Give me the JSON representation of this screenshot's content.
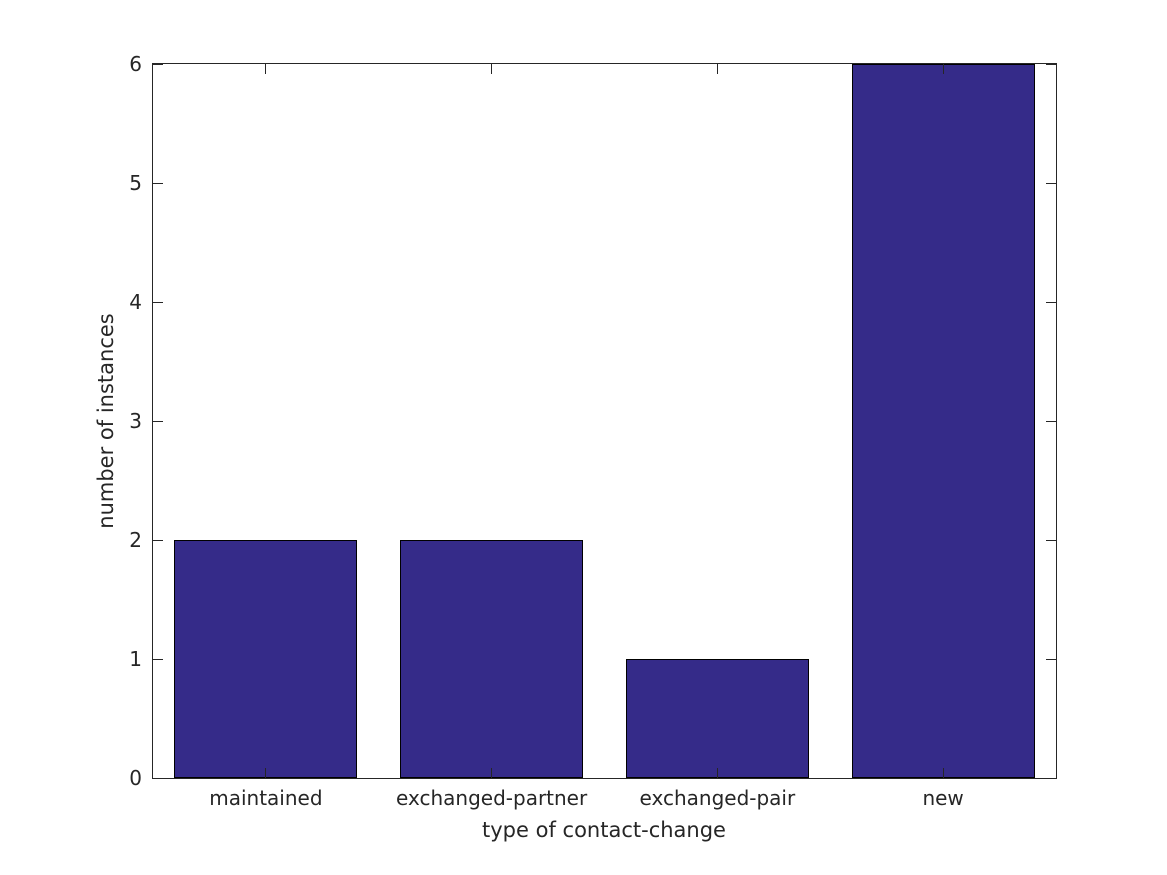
{
  "figure": {
    "background": "#ffffff"
  },
  "chart_data": {
    "type": "bar",
    "title": "",
    "xlabel": "type of contact-change",
    "ylabel": "number of instances",
    "categories": [
      "maintained",
      "exchanged-partner",
      "exchanged-pair",
      "new"
    ],
    "values": [
      2,
      2,
      1,
      6
    ],
    "ylim": [
      0,
      6
    ],
    "yticks": [
      0,
      1,
      2,
      3,
      4,
      5,
      6
    ],
    "grid": false,
    "legend": false,
    "box": true,
    "tick_direction": "in",
    "bar_width_fraction": 0.8,
    "colors": {
      "bar_fill": "#352b89",
      "bar_edge": "#000000",
      "axis": "#262626",
      "text": "#262626"
    }
  }
}
